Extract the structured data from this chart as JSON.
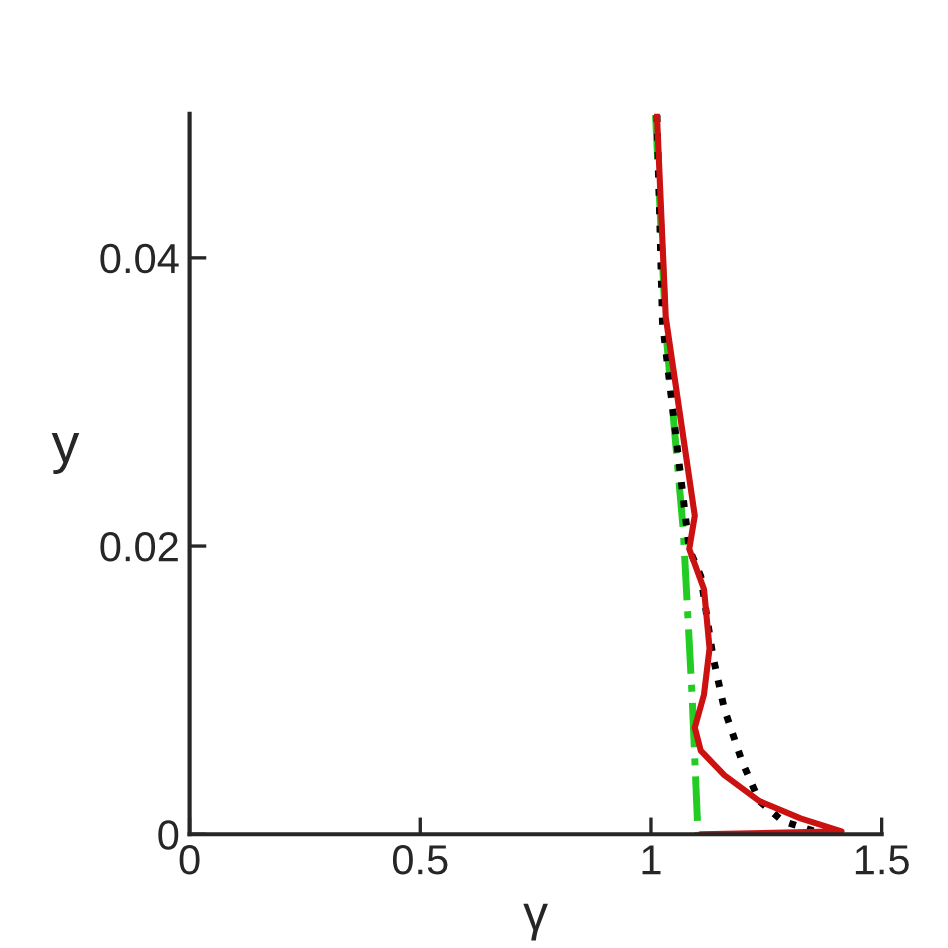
{
  "chart_data": {
    "type": "line",
    "xlabel": "γ",
    "ylabel": "y",
    "xlim": [
      0,
      1.5
    ],
    "xticks": [
      0,
      0.5,
      1,
      1.5
    ],
    "ylim": [
      0,
      0.05
    ],
    "yticks": [
      0,
      0.02,
      0.04
    ],
    "grid": false,
    "legend": false,
    "marker": "none",
    "series": [
      {
        "color": "#22cc22",
        "line_style": "dashdot",
        "x": [
          1.01,
          1.032,
          1.07,
          1.089,
          1.102
        ],
        "values": [
          0.0499,
          0.035,
          0.0211,
          0.0097,
          0.0
        ]
      },
      {
        "color": "#000000",
        "line_style": "dotted",
        "x": [
          1.013,
          1.025,
          1.083,
          1.108,
          1.134,
          1.159,
          1.197,
          1.235,
          1.286,
          1.356
        ],
        "values": [
          0.0499,
          0.0355,
          0.0198,
          0.0179,
          0.0124,
          0.0087,
          0.0051,
          0.0023,
          0.0009,
          0.0002
        ]
      },
      {
        "color": "#cc1111",
        "line_style": "solid",
        "x": [
          1.013,
          1.032,
          1.095,
          1.083,
          1.115,
          1.127,
          1.115,
          1.095,
          1.108,
          1.159,
          1.235,
          1.324,
          1.413,
          1.108
        ],
        "values": [
          0.0499,
          0.0359,
          0.0221,
          0.0198,
          0.017,
          0.0129,
          0.0097,
          0.0074,
          0.0058,
          0.0041,
          0.0023,
          0.0011,
          0.0002,
          0.0
        ]
      }
    ]
  }
}
